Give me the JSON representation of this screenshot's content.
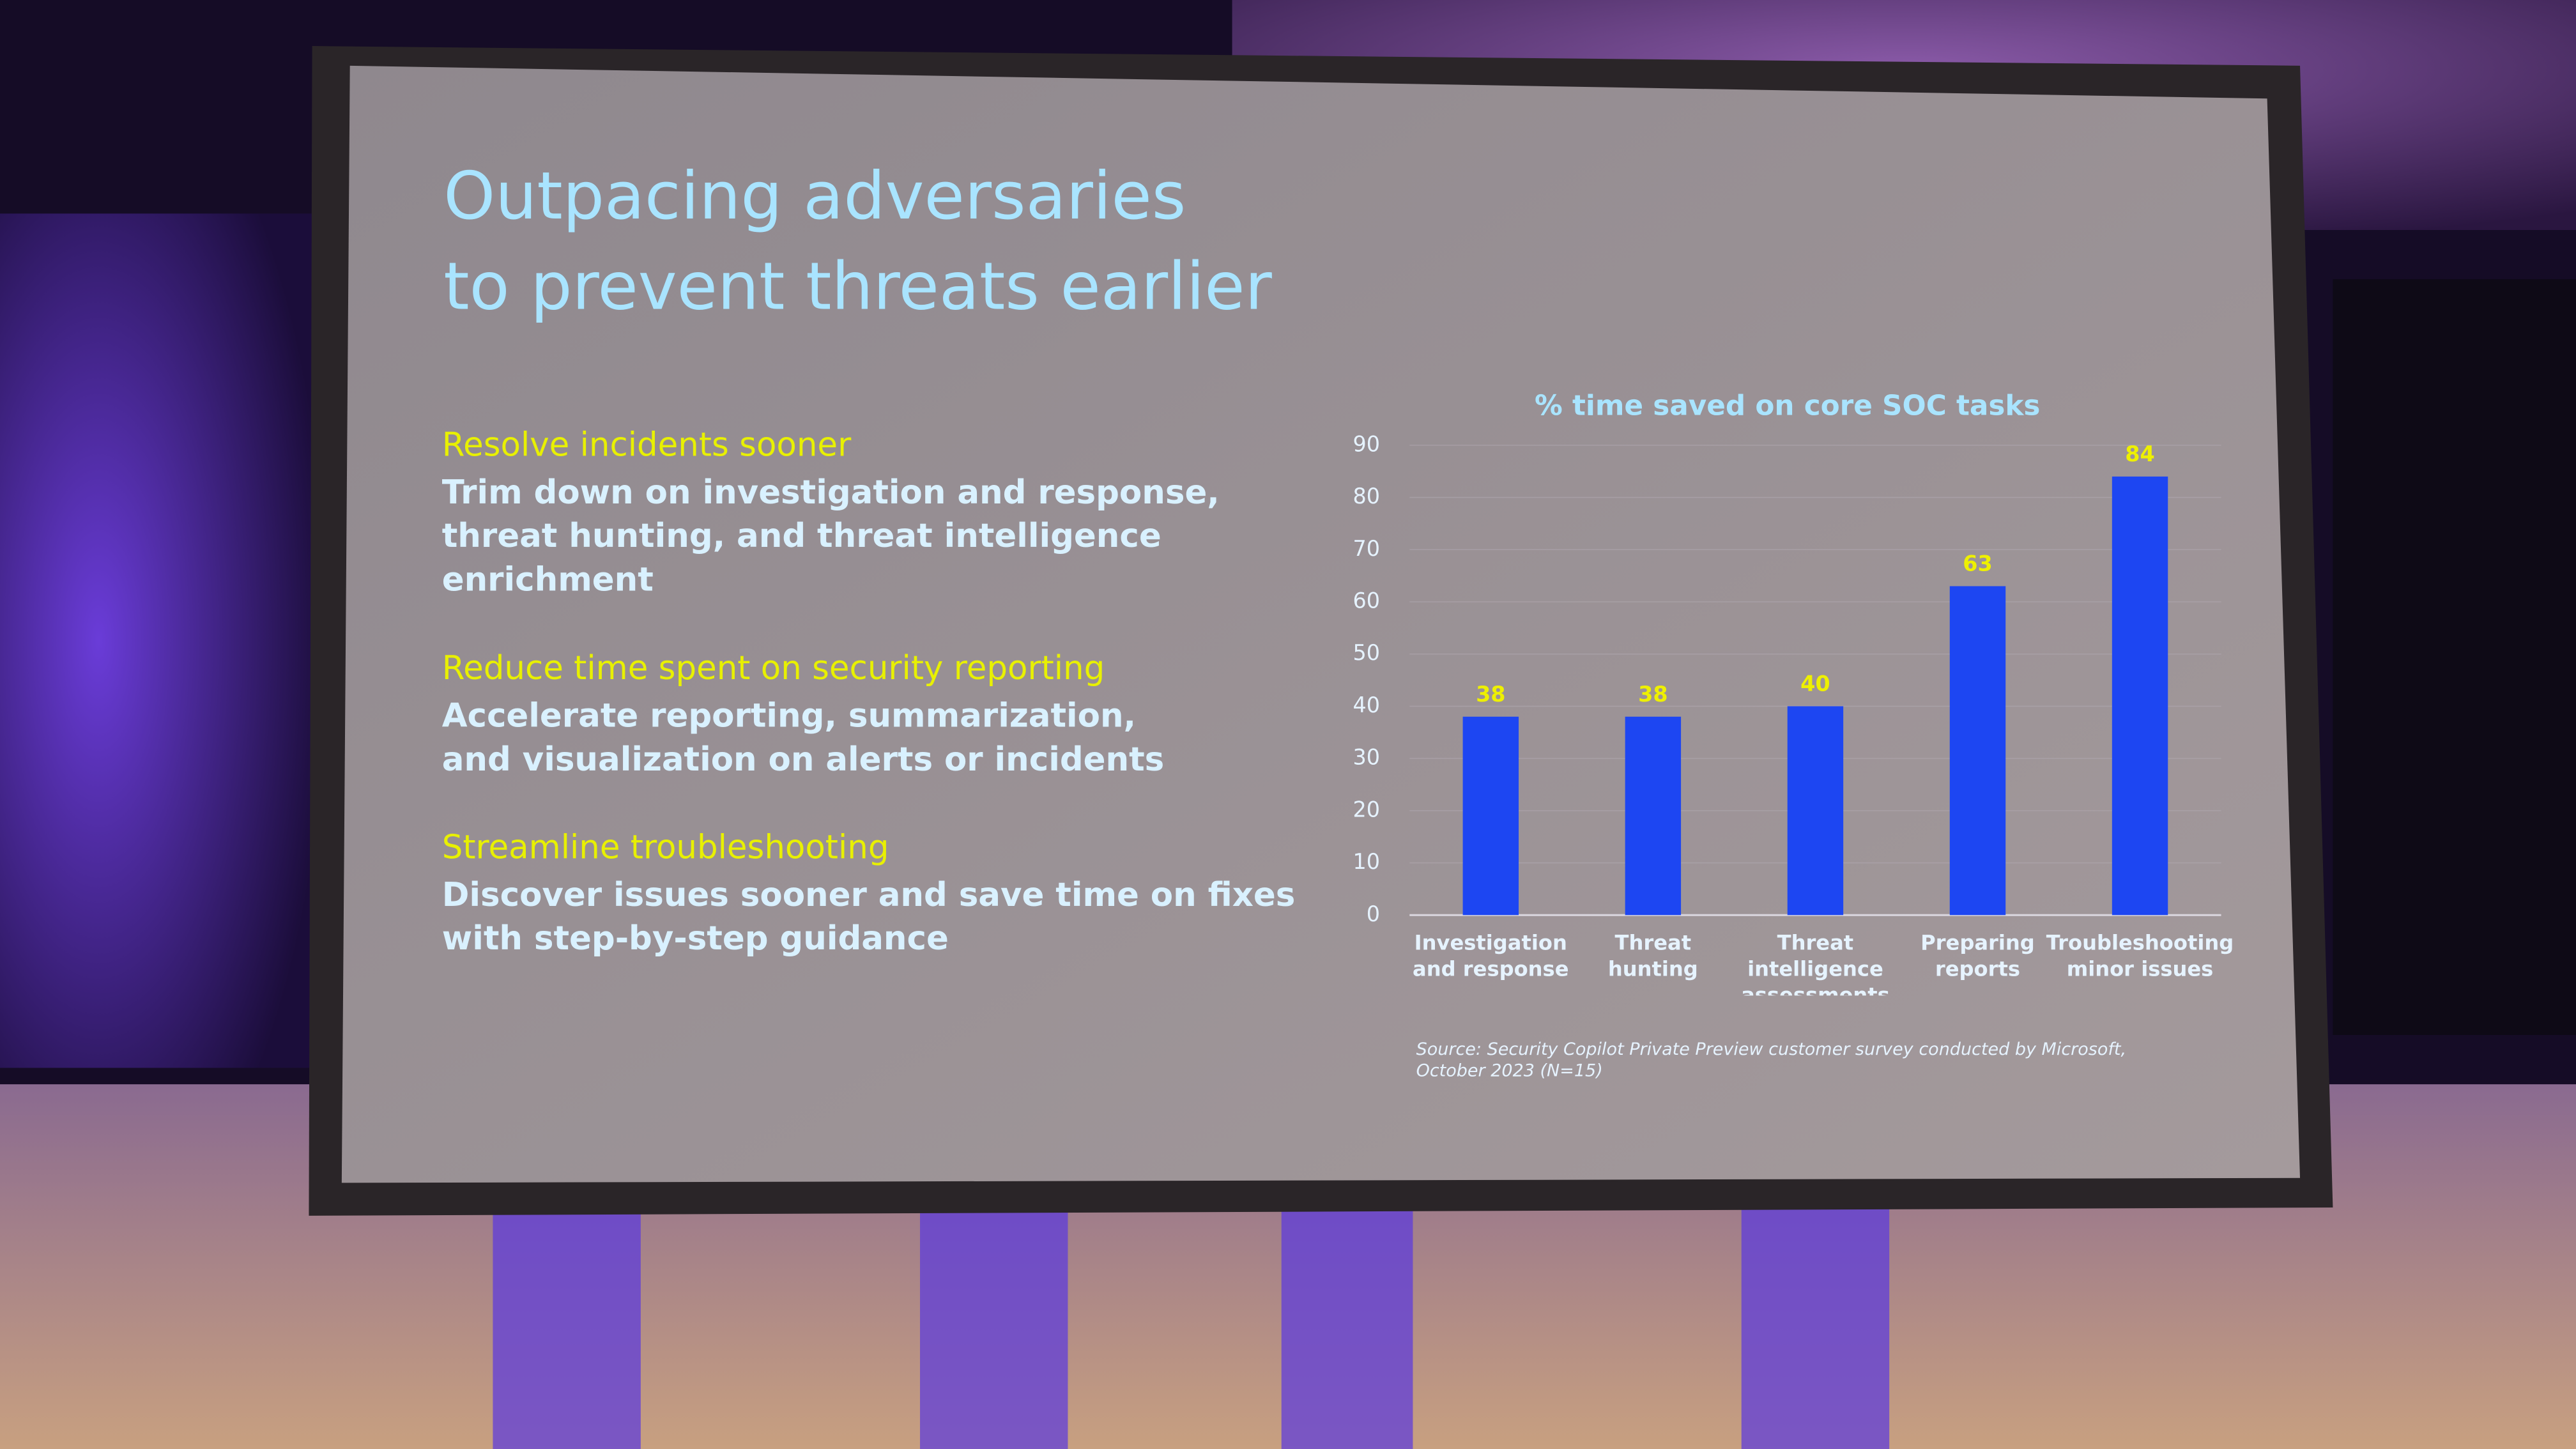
{
  "slide": {
    "title": [
      "Outpacing adversaries",
      "to prevent threats earlier"
    ],
    "points": [
      {
        "heading": "Resolve incidents sooner",
        "body": [
          "Trim down on investigation and response,",
          "threat hunting, and threat intelligence",
          "enrichment"
        ]
      },
      {
        "heading": "Reduce time spent on security reporting",
        "body": [
          "Accelerate reporting, summarization,",
          "and visualization on alerts or incidents"
        ]
      },
      {
        "heading": "Streamline troubleshooting",
        "body": [
          "Discover issues sooner and save time on fixes",
          "with step-by-step guidance"
        ]
      }
    ]
  },
  "chart_data": {
    "type": "bar",
    "title": "% time saved on core SOC tasks",
    "categories": [
      "Investigation and response",
      "Threat hunting",
      "Threat intelligence assessments",
      "Preparing reports",
      "Troubleshooting minor issues"
    ],
    "values": [
      38,
      38,
      40,
      63,
      84
    ],
    "color": "#1d46f2",
    "ylim": [
      0,
      90
    ],
    "yticks": [
      0,
      10,
      20,
      30,
      40,
      50,
      60,
      70,
      80,
      90
    ],
    "grid": true,
    "source": "Source: Security Copilot Private Preview customer survey conducted by Microsoft, October 2023 (N=15)"
  }
}
